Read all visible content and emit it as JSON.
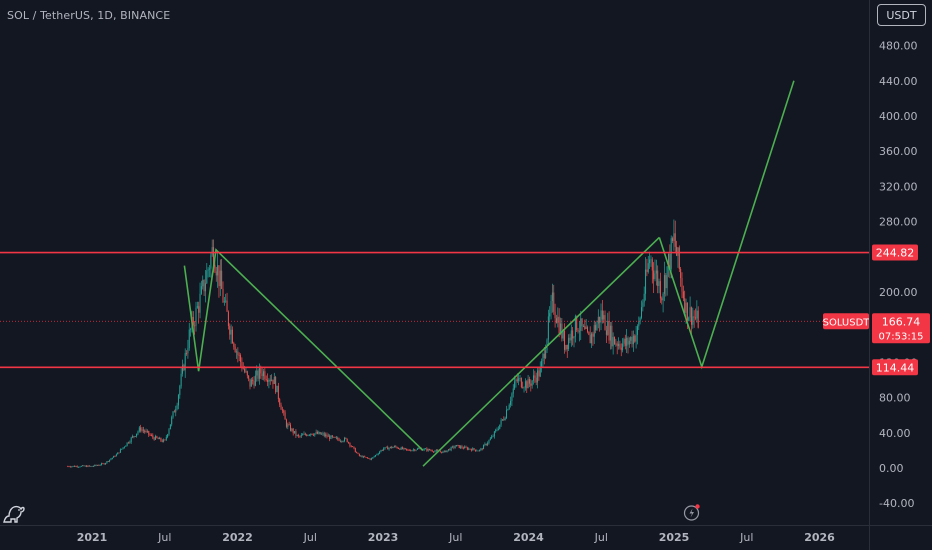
{
  "header": {
    "symbol_title": "SOL / TetherUS, 1D, BINANCE"
  },
  "toolbar": {
    "currency_label": "USDT"
  },
  "price_axis": {
    "ticks": [
      "480.00",
      "440.00",
      "400.00",
      "360.00",
      "320.00",
      "280.00",
      "200.00",
      "120.00",
      "80.00",
      "40.00",
      "0.00",
      "-40.00"
    ],
    "tick_values": [
      480,
      440,
      400,
      360,
      320,
      280,
      200,
      120,
      80,
      40,
      0,
      -40
    ]
  },
  "time_axis": {
    "labels": [
      "2021",
      "Jul",
      "2022",
      "Jul",
      "2023",
      "Jul",
      "2024",
      "Jul",
      "2025",
      "Jul",
      "2026"
    ],
    "bold": [
      true,
      false,
      true,
      false,
      true,
      false,
      true,
      false,
      true,
      false,
      true
    ]
  },
  "horizontal_levels": {
    "resistance": {
      "value": 244.82,
      "label": "244.82"
    },
    "support": {
      "value": 114.44,
      "label": "114.44"
    }
  },
  "last_price": {
    "symbol": "SOLUSDT",
    "price": "166.74",
    "countdown": "07:53:15",
    "value": 166.74
  },
  "colors": {
    "background": "#131722",
    "level_line": "#f23645",
    "projection_line": "#4caf50",
    "up_candle": "#26a69a",
    "down_candle": "#ef5350",
    "axis_text": "#b2b5be",
    "price_label_bg": "#f23645"
  },
  "chart_data": {
    "type": "line",
    "series": [
      {
        "x": [
          "2020-11",
          "2021-01",
          "2021-02",
          "2021-03",
          "2021-04",
          "2021-05",
          "2021-06",
          "2021-07",
          "2021-08",
          "2021-09",
          "2021-10",
          "2021-11",
          "2021-12",
          "2022-01",
          "2022-02",
          "2022-03",
          "2022-04",
          "2022-05",
          "2022-06",
          "2022-07",
          "2022-08",
          "2022-09",
          "2022-10",
          "2022-11",
          "2022-12",
          "2023-01",
          "2023-02",
          "2023-03",
          "2023-04",
          "2023-05",
          "2023-06",
          "2023-07",
          "2023-08",
          "2023-09",
          "2023-10",
          "2023-11",
          "2023-12",
          "2024-01",
          "2024-02",
          "2024-03",
          "2024-04",
          "2024-05",
          "2024-06",
          "2024-07",
          "2024-08",
          "2024-09",
          "2024-10",
          "2024-11",
          "2024-12",
          "2025-01",
          "2025-02",
          "2025-03"
        ],
        "y": [
          2,
          2,
          5,
          15,
          30,
          45,
          35,
          30,
          75,
          150,
          195,
          250,
          180,
          130,
          95,
          110,
          100,
          50,
          35,
          40,
          38,
          33,
          32,
          14,
          10,
          22,
          24,
          20,
          22,
          20,
          18,
          25,
          22,
          20,
          35,
          58,
          100,
          95,
          110,
          190,
          140,
          165,
          145,
          175,
          145,
          140,
          155,
          240,
          200,
          260,
          180,
          166.74
        ]
      }
    ],
    "ylim": [
      -55,
      520
    ]
  }
}
